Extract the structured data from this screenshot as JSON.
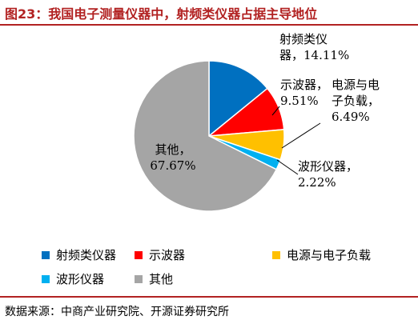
{
  "header": {
    "title": "图23：我国电子测量仪器中，射频类仪器占据主导地位"
  },
  "footer": {
    "source": "数据来源：中商产业研究院、开源证券研究所"
  },
  "colors": {
    "title": "#b22222",
    "rule": "#b22222"
  },
  "chart_data": {
    "type": "pie",
    "start_angle_deg": 0,
    "direction": "clockwise",
    "legend_position": "bottom",
    "slices": [
      {
        "name": "射频类仪器",
        "value": 14.11,
        "label_lines": [
          "射频类仪",
          "器，14.11%"
        ],
        "color": "#0070c0"
      },
      {
        "name": "示波器",
        "value": 9.51,
        "label_lines": [
          "示波器，",
          "9.51%"
        ],
        "color": "#ff0000"
      },
      {
        "name": "电源与电子负载",
        "value": 6.49,
        "label_lines": [
          "电源与电",
          "子负载，",
          "6.49%"
        ],
        "color": "#ffc000"
      },
      {
        "name": "波形仪器",
        "value": 2.22,
        "label_lines": [
          "波形仪器，",
          "2.22%"
        ],
        "color": "#00b0f0"
      },
      {
        "name": "其他",
        "value": 67.67,
        "label_lines": [
          "其他，",
          "67.67%"
        ],
        "color": "#a5a5a5"
      }
    ]
  }
}
